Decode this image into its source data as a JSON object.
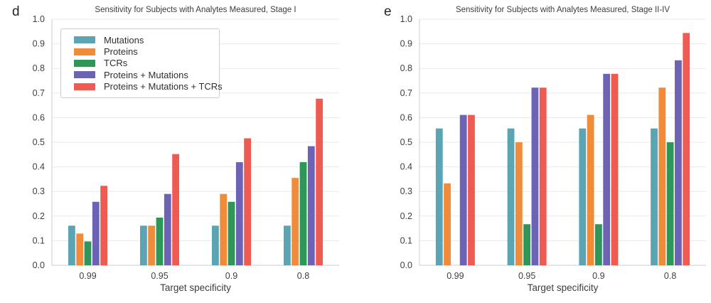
{
  "style": {
    "background": "#ffffff",
    "grid_color": "#e9e9e9",
    "spine_color": "#cccccc",
    "text_color": "#3d3d3d",
    "tick_color": "#404040",
    "panel_label_color": "#262626",
    "legend_border_color": "#cccccc",
    "palette": {
      "teal": "#5ba4b4",
      "orange": "#f08b39",
      "green": "#2e9758",
      "purple": "#6c63b4",
      "red": "#f05b51"
    }
  },
  "legend": {
    "position": "upper left",
    "items": [
      "Mutations",
      "Proteins",
      "TCRs",
      "Proteins + Mutations",
      "Proteins + Mutations + TCRs"
    ]
  },
  "chart_data": [
    {
      "type": "bar",
      "panel_label": "d",
      "title": "Sensitivity for Subjects with Analytes Measured, Stage I",
      "xlabel": "Target specificity",
      "ylabel": "",
      "ylim": [
        0.0,
        1.0
      ],
      "grid": true,
      "legend_visible": true,
      "y_ticks": [
        "0.0",
        "0.1",
        "0.2",
        "0.3",
        "0.4",
        "0.5",
        "0.6",
        "0.7",
        "0.8",
        "0.9",
        "1.0"
      ],
      "categories": [
        "0.99",
        "0.95",
        "0.9",
        "0.8"
      ],
      "series": [
        {
          "name": "Mutations",
          "color": "#5ba4b4",
          "values": [
            0.161,
            0.161,
            0.161,
            0.161
          ]
        },
        {
          "name": "Proteins",
          "color": "#f08b39",
          "values": [
            0.129,
            0.161,
            0.29,
            0.355
          ]
        },
        {
          "name": "TCRs",
          "color": "#2e9758",
          "values": [
            0.097,
            0.194,
            0.258,
            0.419
          ]
        },
        {
          "name": "Proteins + Mutations",
          "color": "#6c63b4",
          "values": [
            0.258,
            0.29,
            0.419,
            0.484
          ]
        },
        {
          "name": "Proteins + Mutations + TCRs",
          "color": "#f05b51",
          "values": [
            0.323,
            0.452,
            0.516,
            0.677
          ]
        }
      ]
    },
    {
      "type": "bar",
      "panel_label": "e",
      "title": "Sensitivity for Subjects with Analytes Measured, Stage II-IV",
      "xlabel": "Target specificity",
      "ylabel": "",
      "ylim": [
        0.0,
        1.0
      ],
      "grid": true,
      "legend_visible": false,
      "y_ticks": [
        "0.0",
        "0.1",
        "0.2",
        "0.3",
        "0.4",
        "0.5",
        "0.6",
        "0.7",
        "0.8",
        "0.9",
        "1.0"
      ],
      "categories": [
        "0.99",
        "0.95",
        "0.9",
        "0.8"
      ],
      "series": [
        {
          "name": "Mutations",
          "color": "#5ba4b4",
          "values": [
            0.556,
            0.556,
            0.556,
            0.556
          ]
        },
        {
          "name": "Proteins",
          "color": "#f08b39",
          "values": [
            0.333,
            0.5,
            0.611,
            0.722
          ]
        },
        {
          "name": "TCRs",
          "color": "#2e9758",
          "values": [
            0.0,
            0.167,
            0.167,
            0.5
          ]
        },
        {
          "name": "Proteins + Mutations",
          "color": "#6c63b4",
          "values": [
            0.611,
            0.722,
            0.778,
            0.833
          ]
        },
        {
          "name": "Proteins + Mutations + TCRs",
          "color": "#f05b51",
          "values": [
            0.611,
            0.722,
            0.778,
            0.944
          ]
        }
      ]
    }
  ]
}
